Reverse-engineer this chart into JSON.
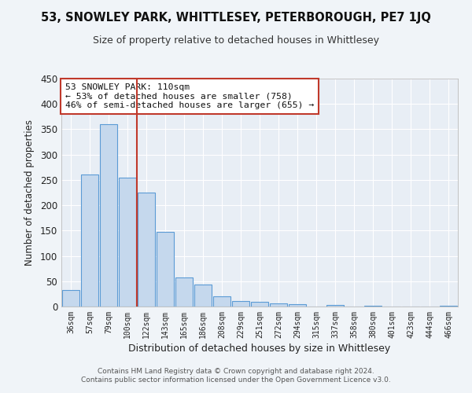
{
  "title": "53, SNOWLEY PARK, WHITTLESEY, PETERBOROUGH, PE7 1JQ",
  "subtitle": "Size of property relative to detached houses in Whittlesey",
  "xlabel": "Distribution of detached houses by size in Whittlesey",
  "ylabel": "Number of detached properties",
  "categories": [
    "36sqm",
    "57sqm",
    "79sqm",
    "100sqm",
    "122sqm",
    "143sqm",
    "165sqm",
    "186sqm",
    "208sqm",
    "229sqm",
    "251sqm",
    "272sqm",
    "294sqm",
    "315sqm",
    "337sqm",
    "358sqm",
    "380sqm",
    "401sqm",
    "423sqm",
    "444sqm",
    "466sqm"
  ],
  "values": [
    32,
    260,
    360,
    255,
    225,
    148,
    57,
    44,
    20,
    11,
    10,
    6,
    5,
    0,
    3,
    0,
    2,
    0,
    0,
    0,
    2
  ],
  "bar_color": "#c5d8ed",
  "bar_edge_color": "#5b9bd5",
  "vline_x": 3.5,
  "vline_color": "#c0392b",
  "annotation_title": "53 SNOWLEY PARK: 110sqm",
  "annotation_line1": "← 53% of detached houses are smaller (758)",
  "annotation_line2": "46% of semi-detached houses are larger (655) →",
  "annotation_box_edge_color": "#c0392b",
  "ylim": [
    0,
    450
  ],
  "yticks": [
    0,
    50,
    100,
    150,
    200,
    250,
    300,
    350,
    400,
    450
  ],
  "bg_color": "#e8eef5",
  "grid_color": "#ffffff",
  "fig_bg_color": "#f0f4f8",
  "footer_line1": "Contains HM Land Registry data © Crown copyright and database right 2024.",
  "footer_line2": "Contains public sector information licensed under the Open Government Licence v3.0."
}
